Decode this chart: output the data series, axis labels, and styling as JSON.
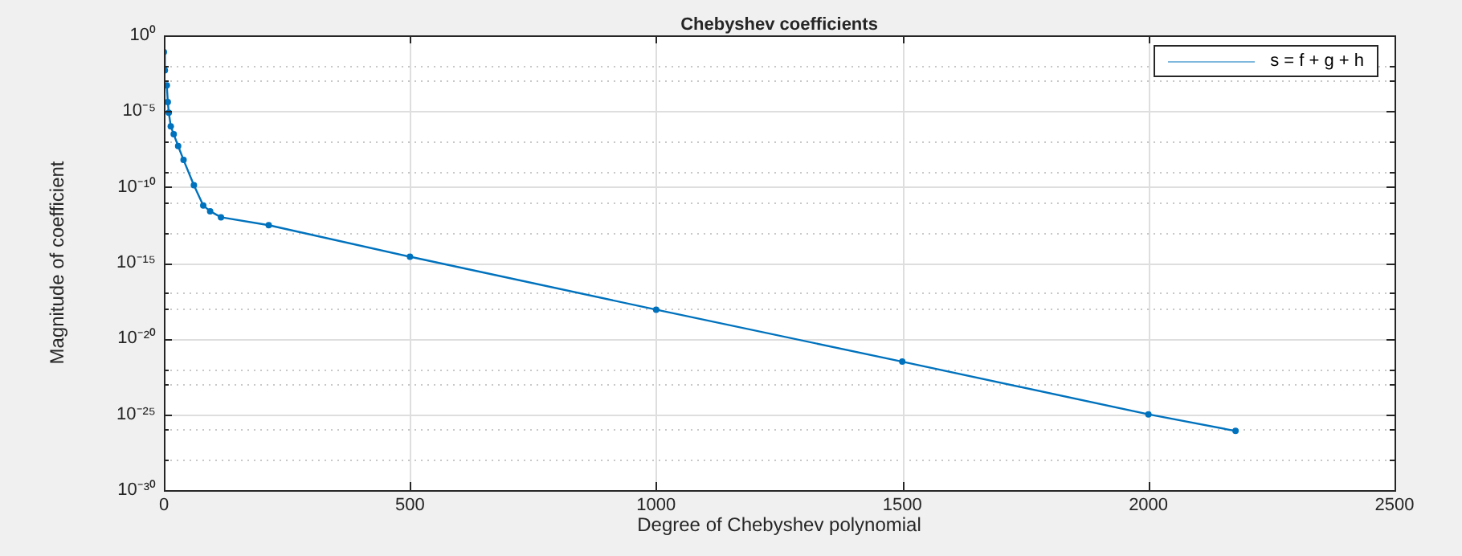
{
  "chart_data": {
    "type": "line",
    "title": "Chebyshev coefficients",
    "xlabel": "Degree of Chebyshev polynomial",
    "ylabel": "Magnitude of coefficient",
    "log": "y",
    "grid": true,
    "legend": "top right",
    "marker": "circle",
    "line_style": "solid",
    "xlim": [
      0,
      2500
    ],
    "xticks": [
      0,
      500,
      1000,
      1500,
      2000,
      2500
    ],
    "ylim": [
      1e-30,
      1
    ],
    "yticks": [
      {
        "value": 1,
        "label": "10⁰"
      },
      {
        "value": 1e-05,
        "label": "10⁻⁵"
      },
      {
        "value": 1e-10,
        "label": "10⁻¹⁰"
      },
      {
        "value": 1e-15,
        "label": "10⁻¹⁵"
      },
      {
        "value": 1e-20,
        "label": "10⁻²⁰"
      },
      {
        "value": 1e-25,
        "label": "10⁻²⁵"
      },
      {
        "value": 1e-30,
        "label": "10⁻³⁰"
      },
      {
        "value": 0.01,
        "label": null
      },
      {
        "value": 0.001,
        "label": null
      },
      {
        "value": 1e-07,
        "label": null
      },
      {
        "value": 1e-09,
        "label": null
      },
      {
        "value": 1e-11,
        "label": null
      },
      {
        "value": 1e-13,
        "label": null
      },
      {
        "value": 1e-17,
        "label": null
      },
      {
        "value": 1e-18,
        "label": null
      },
      {
        "value": 1e-22,
        "label": null
      },
      {
        "value": 1e-23,
        "label": null
      },
      {
        "value": 1e-26,
        "label": null
      },
      {
        "value": 1e-28,
        "label": null
      }
    ],
    "series": [
      {
        "name": "s = f + g + h",
        "color": "#0072bd",
        "x": [
          0,
          2,
          4,
          6,
          8,
          10,
          14,
          20,
          29,
          40,
          61,
          80,
          94,
          116,
          213,
          500,
          1000,
          1500,
          2000,
          2177
        ],
        "values": [
          0.08,
          0.005,
          null,
          0.0005,
          4e-05,
          8e-06,
          1e-06,
          3e-07,
          5e-08,
          6e-09,
          1.3e-10,
          6e-12,
          2.5e-12,
          1e-12,
          3e-13,
          2.5e-15,
          8e-19,
          3e-22,
          1e-25,
          8e-27
        ]
      }
    ]
  }
}
